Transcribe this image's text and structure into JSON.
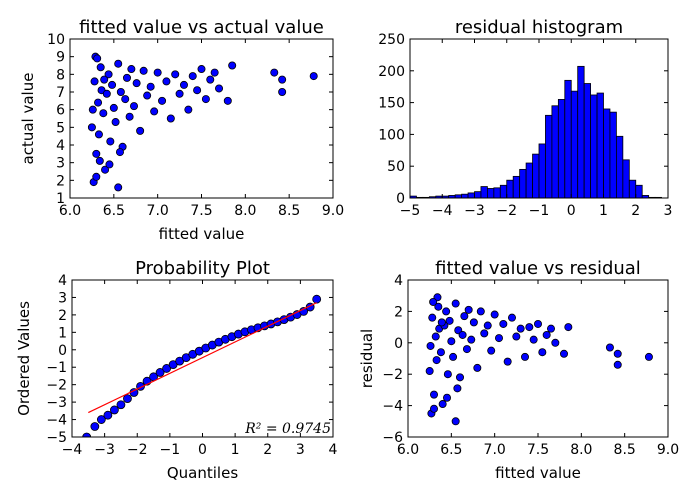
{
  "colors": {
    "marker": "#0000ff",
    "edge": "#000000",
    "bar": "#0000ff",
    "fit_line": "#ff0000"
  },
  "chart_data": [
    {
      "type": "scatter",
      "title": "fitted value vs actual value",
      "xlabel": "fitted value",
      "ylabel": "actual value",
      "xlim": [
        6.0,
        9.0
      ],
      "ylim": [
        1,
        10
      ],
      "xticks": [
        "6.0",
        "6.5",
        "7.0",
        "7.5",
        "8.0",
        "8.5",
        "9.0"
      ],
      "yticks": [
        "1",
        "2",
        "3",
        "4",
        "5",
        "6",
        "7",
        "8",
        "9",
        "10"
      ],
      "grid": false,
      "points": [
        [
          6.25,
          5.0
        ],
        [
          6.28,
          7.6
        ],
        [
          6.3,
          3.5
        ],
        [
          6.32,
          6.4
        ],
        [
          6.35,
          8.4
        ],
        [
          6.33,
          4.6
        ],
        [
          6.36,
          7.1
        ],
        [
          6.38,
          5.8
        ],
        [
          6.4,
          2.6
        ],
        [
          6.42,
          6.9
        ],
        [
          6.44,
          8.0
        ],
        [
          6.46,
          4.2
        ],
        [
          6.48,
          7.4
        ],
        [
          6.5,
          6.1
        ],
        [
          6.52,
          5.3
        ],
        [
          6.55,
          8.6
        ],
        [
          6.58,
          7.0
        ],
        [
          6.6,
          3.9
        ],
        [
          6.63,
          6.6
        ],
        [
          6.65,
          7.8
        ],
        [
          6.68,
          5.6
        ],
        [
          6.7,
          8.3
        ],
        [
          6.73,
          6.2
        ],
        [
          6.76,
          7.5
        ],
        [
          6.8,
          4.8
        ],
        [
          6.84,
          8.2
        ],
        [
          6.88,
          6.8
        ],
        [
          6.92,
          7.3
        ],
        [
          6.96,
          5.9
        ],
        [
          7.0,
          8.1
        ],
        [
          7.05,
          6.5
        ],
        [
          7.1,
          7.6
        ],
        [
          7.15,
          5.5
        ],
        [
          7.2,
          8.0
        ],
        [
          7.25,
          6.9
        ],
        [
          7.3,
          7.4
        ],
        [
          7.35,
          6.0
        ],
        [
          7.4,
          7.9
        ],
        [
          7.45,
          7.1
        ],
        [
          7.5,
          8.3
        ],
        [
          7.55,
          6.6
        ],
        [
          7.6,
          7.7
        ],
        [
          7.65,
          8.1
        ],
        [
          7.7,
          7.2
        ],
        [
          7.8,
          6.5
        ],
        [
          7.85,
          8.5
        ],
        [
          8.33,
          8.1
        ],
        [
          8.42,
          7.7
        ],
        [
          8.42,
          7.0
        ],
        [
          8.78,
          7.9
        ],
        [
          6.27,
          1.9
        ],
        [
          6.3,
          2.2
        ],
        [
          6.55,
          1.6
        ],
        [
          6.45,
          2.9
        ],
        [
          6.34,
          3.1
        ],
        [
          6.29,
          9.0
        ],
        [
          6.31,
          8.9
        ],
        [
          6.26,
          6.0
        ],
        [
          6.39,
          7.7
        ],
        [
          6.57,
          3.6
        ]
      ]
    },
    {
      "type": "bar",
      "title": "residual histogram",
      "xlim": [
        -5,
        3
      ],
      "ylim": [
        0,
        250
      ],
      "xticks": [
        "−5",
        "−4",
        "−3",
        "−2",
        "−1",
        "0",
        "1",
        "2",
        "3"
      ],
      "yticks": [
        "0",
        "50",
        "100",
        "150",
        "200",
        "250"
      ],
      "grid": false,
      "bins": [
        [
          -5.0,
          3
        ],
        [
          -4.8,
          1
        ],
        [
          -4.6,
          1
        ],
        [
          -4.4,
          2
        ],
        [
          -4.2,
          3
        ],
        [
          -4.0,
          3
        ],
        [
          -3.8,
          4
        ],
        [
          -3.6,
          5
        ],
        [
          -3.4,
          6
        ],
        [
          -3.2,
          8
        ],
        [
          -3.0,
          10
        ],
        [
          -2.8,
          18
        ],
        [
          -2.6,
          15
        ],
        [
          -2.4,
          16
        ],
        [
          -2.2,
          20
        ],
        [
          -2.0,
          28
        ],
        [
          -1.8,
          34
        ],
        [
          -1.6,
          45
        ],
        [
          -1.4,
          55
        ],
        [
          -1.2,
          69
        ],
        [
          -1.0,
          85
        ],
        [
          -0.8,
          130
        ],
        [
          -0.6,
          145
        ],
        [
          -0.4,
          155
        ],
        [
          -0.2,
          185
        ],
        [
          0.0,
          168
        ],
        [
          0.2,
          207
        ],
        [
          0.4,
          180
        ],
        [
          0.6,
          162
        ],
        [
          0.8,
          165
        ],
        [
          1.0,
          140
        ],
        [
          1.2,
          135
        ],
        [
          1.4,
          97
        ],
        [
          1.6,
          60
        ],
        [
          1.8,
          28
        ],
        [
          2.0,
          20
        ],
        [
          2.2,
          4
        ],
        [
          2.4,
          1
        ],
        [
          2.6,
          1
        ],
        [
          2.8,
          0
        ]
      ]
    },
    {
      "type": "scatter",
      "title": "Probability Plot",
      "xlabel": "Quantiles",
      "ylabel": "Ordered Values",
      "xlim": [
        -4,
        4
      ],
      "ylim": [
        -5,
        4
      ],
      "xticks": [
        "−4",
        "−3",
        "−2",
        "−1",
        "0",
        "1",
        "2",
        "3",
        "4"
      ],
      "yticks": [
        "−5",
        "−4",
        "−3",
        "−2",
        "−1",
        "0",
        "1",
        "2",
        "3",
        "4"
      ],
      "grid": false,
      "fit_line": [
        [
          -3.5,
          -3.6
        ],
        [
          3.5,
          2.7
        ]
      ],
      "annotation": "R² = 0.9745",
      "points": [
        [
          -3.55,
          -5.0
        ],
        [
          -3.3,
          -4.4
        ],
        [
          -3.1,
          -4.0
        ],
        [
          -2.9,
          -3.75
        ],
        [
          -2.7,
          -3.45
        ],
        [
          -2.5,
          -3.15
        ],
        [
          -2.3,
          -2.8
        ],
        [
          -2.1,
          -2.45
        ],
        [
          -1.9,
          -2.1
        ],
        [
          -1.7,
          -1.8
        ],
        [
          -1.5,
          -1.55
        ],
        [
          -1.3,
          -1.3
        ],
        [
          -1.1,
          -1.07
        ],
        [
          -0.9,
          -0.85
        ],
        [
          -0.7,
          -0.65
        ],
        [
          -0.5,
          -0.45
        ],
        [
          -0.3,
          -0.26
        ],
        [
          -0.1,
          -0.08
        ],
        [
          0.1,
          0.1
        ],
        [
          0.3,
          0.27
        ],
        [
          0.5,
          0.44
        ],
        [
          0.7,
          0.6
        ],
        [
          0.9,
          0.75
        ],
        [
          1.1,
          0.9
        ],
        [
          1.3,
          1.03
        ],
        [
          1.5,
          1.15
        ],
        [
          1.7,
          1.26
        ],
        [
          1.9,
          1.37
        ],
        [
          2.1,
          1.48
        ],
        [
          2.3,
          1.6
        ],
        [
          2.5,
          1.73
        ],
        [
          2.7,
          1.87
        ],
        [
          2.9,
          2.02
        ],
        [
          3.1,
          2.2
        ],
        [
          3.3,
          2.45
        ],
        [
          3.5,
          2.9
        ]
      ]
    },
    {
      "type": "scatter",
      "title": "fitted value vs residual",
      "xlabel": "fitted value",
      "ylabel": "residual",
      "xlim": [
        6.0,
        9.0
      ],
      "ylim": [
        -6,
        4
      ],
      "xticks": [
        "6.0",
        "6.5",
        "7.0",
        "7.5",
        "8.0",
        "8.5",
        "9.0"
      ],
      "yticks": [
        "−6",
        "−4",
        "−2",
        "0",
        "2",
        "4"
      ],
      "grid": false,
      "points": [
        [
          6.25,
          -1.8
        ],
        [
          6.28,
          1.6
        ],
        [
          6.3,
          -3.3
        ],
        [
          6.32,
          0.4
        ],
        [
          6.35,
          2.3
        ],
        [
          6.33,
          -1.1
        ],
        [
          6.36,
          0.9
        ],
        [
          6.38,
          -0.6
        ],
        [
          6.4,
          -3.9
        ],
        [
          6.42,
          1.1
        ],
        [
          6.44,
          2.0
        ],
        [
          6.46,
          -2.0
        ],
        [
          6.48,
          1.4
        ],
        [
          6.5,
          0.1
        ],
        [
          6.52,
          -0.9
        ],
        [
          6.55,
          2.5
        ],
        [
          6.58,
          0.8
        ],
        [
          6.6,
          -2.2
        ],
        [
          6.63,
          0.5
        ],
        [
          6.65,
          1.7
        ],
        [
          6.68,
          -0.4
        ],
        [
          6.7,
          2.1
        ],
        [
          6.73,
          0.2
        ],
        [
          6.76,
          1.3
        ],
        [
          6.8,
          -1.6
        ],
        [
          6.84,
          2.0
        ],
        [
          6.88,
          0.6
        ],
        [
          6.92,
          1.1
        ],
        [
          6.96,
          -0.5
        ],
        [
          7.0,
          1.8
        ],
        [
          7.05,
          0.3
        ],
        [
          7.1,
          1.2
        ],
        [
          7.15,
          -1.2
        ],
        [
          7.2,
          1.6
        ],
        [
          7.25,
          0.4
        ],
        [
          7.3,
          0.9
        ],
        [
          7.35,
          -0.9
        ],
        [
          7.4,
          1.0
        ],
        [
          7.45,
          0.2
        ],
        [
          7.5,
          1.2
        ],
        [
          7.55,
          -0.6
        ],
        [
          7.6,
          0.5
        ],
        [
          7.65,
          0.9
        ],
        [
          7.7,
          0.0
        ],
        [
          7.8,
          -0.7
        ],
        [
          7.85,
          1.0
        ],
        [
          8.33,
          -0.3
        ],
        [
          8.42,
          -0.7
        ],
        [
          8.42,
          -1.4
        ],
        [
          8.78,
          -0.9
        ],
        [
          6.27,
          -4.5
        ],
        [
          6.3,
          -4.2
        ],
        [
          6.55,
          -5.0
        ],
        [
          6.45,
          -3.5
        ],
        [
          6.34,
          2.9
        ],
        [
          6.29,
          2.6
        ],
        [
          6.26,
          -0.2
        ],
        [
          6.39,
          1.3
        ],
        [
          6.57,
          -2.9
        ]
      ]
    }
  ]
}
